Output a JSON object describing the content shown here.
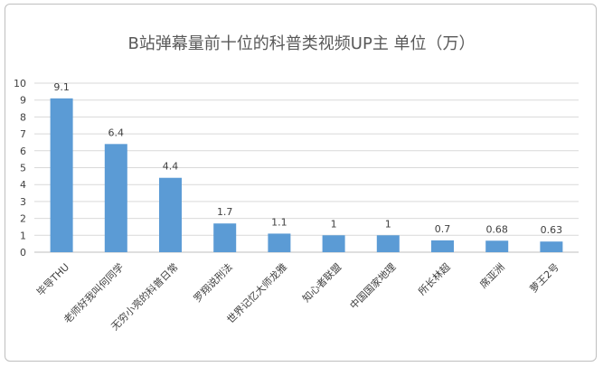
{
  "chart_data": {
    "type": "bar",
    "title": "B站弹幕量前十位的科普类视频UP主 单位（万）",
    "categories": [
      "毕导THU",
      "老师好我叫何同学",
      "无穷小亮的科普日常",
      "罗翔说刑法",
      "世界记忆大师龙雅",
      "知心者联盟",
      "中国国家地理",
      "所长林超",
      "席亚洲",
      "萝王2号"
    ],
    "values": [
      9.1,
      6.4,
      4.4,
      1.7,
      1.1,
      1,
      1,
      0.7,
      0.68,
      0.63
    ],
    "value_labels": [
      "9.1",
      "6.4",
      "4.4",
      "1.7",
      "1.1",
      "1",
      "1",
      "0.7",
      "0.68",
      "0.63"
    ],
    "y_ticks": [
      "0",
      "1",
      "2",
      "3",
      "4",
      "5",
      "6",
      "7",
      "8",
      "9",
      "10"
    ],
    "ylim": [
      0,
      10
    ],
    "xlabel": "",
    "ylabel": "",
    "grid": true,
    "legend": "none",
    "colors": {
      "bar": "#5B9BD5",
      "grid": "#d9d9d9",
      "text": "#404040",
      "title": "#595959",
      "border": "#bfbfbf"
    }
  }
}
